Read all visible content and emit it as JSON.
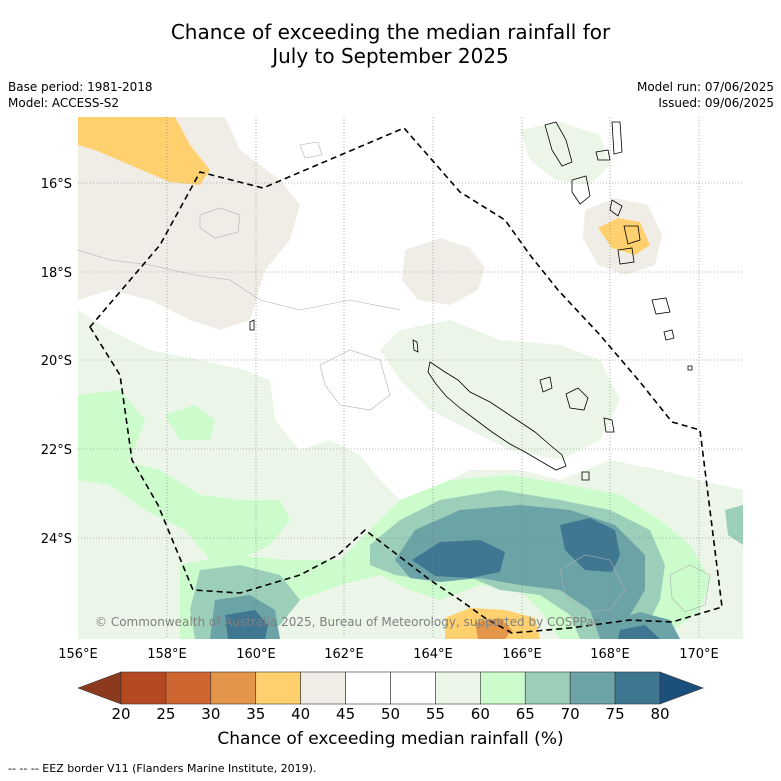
{
  "title": {
    "line1": "Chance of exceeding the median rainfall for",
    "line2": "July to September 2025"
  },
  "info_left": {
    "base_period": "Base period: 1981-2018",
    "model": "Model: ACCESS-S2"
  },
  "info_right": {
    "model_run": "Model run: 07/06/2025",
    "issued": "Issued: 09/06/2025"
  },
  "map": {
    "lat_labels": [
      "16°S",
      "18°S",
      "20°S",
      "22°S",
      "24°S"
    ],
    "lon_labels": [
      "156°E",
      "158°E",
      "160°E",
      "162°E",
      "164°E",
      "166°E",
      "168°E",
      "170°E"
    ],
    "copyright": "© Commonwealth of Australia 2025, Bureau of Meteorology, supported by COSPPac",
    "eez_color": "#000000"
  },
  "colorbar": {
    "ticks": [
      "20",
      "25",
      "30",
      "35",
      "40",
      "45",
      "50",
      "55",
      "60",
      "65",
      "70",
      "75",
      "80"
    ],
    "colors": [
      "#8c3a1e",
      "#b54a22",
      "#cf6531",
      "#e3954a",
      "#ffd16e",
      "#efede6",
      "#ffffff",
      "#ffffff",
      "#ebf6e8",
      "#ccfccc",
      "#9ccfba",
      "#6ba3a6",
      "#3f7692",
      "#1d4f7d"
    ],
    "label": "Chance of exceeding median rainfall (%)"
  },
  "footer": {
    "legend": "--  --  -- EEZ border V11 (Flanders Marine Institute, 2019)."
  }
}
